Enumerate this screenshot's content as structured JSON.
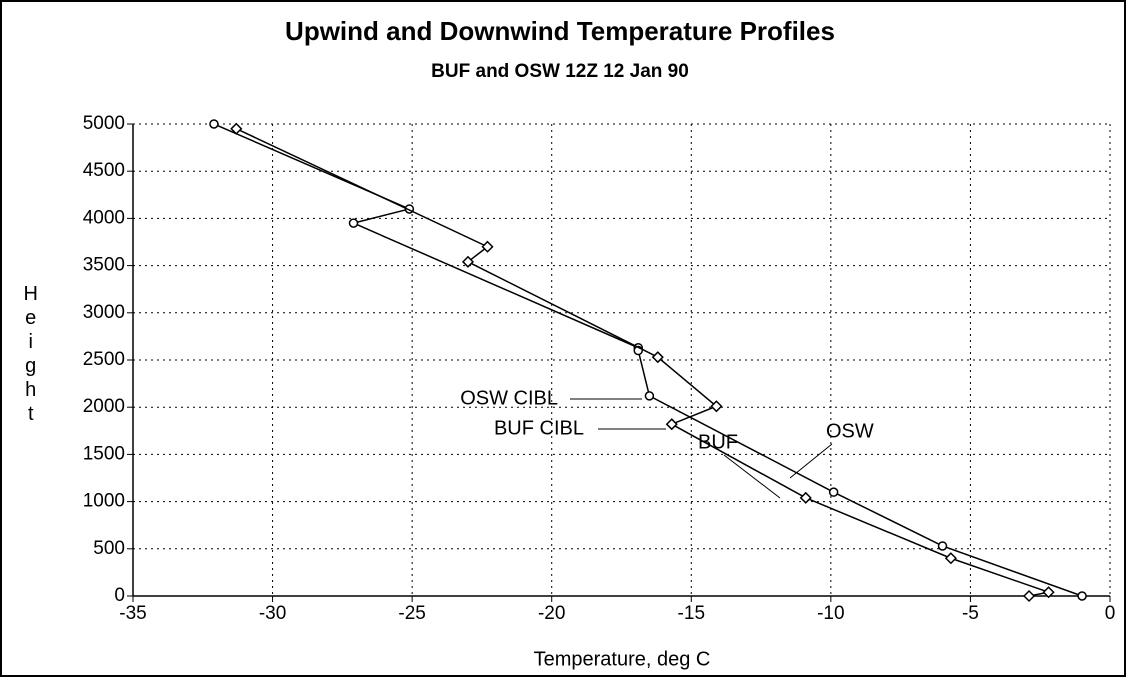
{
  "chart_data": {
    "type": "line",
    "title": "Upwind and Downwind Temperature Profiles",
    "subtitle": "BUF and OSW 12Z  12 Jan 90",
    "xlabel": "Temperature, deg C",
    "ylabel": "Height",
    "xlim": [
      -35,
      0
    ],
    "ylim": [
      0,
      5000
    ],
    "xticks": [
      -35,
      -30,
      -25,
      -20,
      -15,
      -10,
      -5,
      0
    ],
    "yticks": [
      0,
      500,
      1000,
      1500,
      2000,
      2500,
      3000,
      3500,
      4000,
      4500,
      5000
    ],
    "grid": true,
    "series": [
      {
        "name": "OSW",
        "color": "#000000",
        "marker": "circle",
        "x": [
          -32.1,
          -25.1,
          -27.1,
          -16.9,
          -16.9,
          -16.5,
          -9.9,
          -6.0,
          -1.0
        ],
        "values": [
          5000,
          4100,
          3950,
          2630,
          2600,
          2120,
          1100,
          530,
          0
        ]
      },
      {
        "name": "BUF",
        "color": "#000000",
        "marker": "diamond",
        "x": [
          -31.3,
          -22.3,
          -23.0,
          -16.2,
          -14.1,
          -15.7,
          -10.9,
          -5.7,
          -2.2,
          -2.9
        ],
        "values": [
          4950,
          3700,
          3540,
          2530,
          2010,
          1820,
          1040,
          400,
          40,
          0
        ]
      }
    ],
    "annotations": [
      "OSW CIBL",
      "BUF CIBL"
    ]
  }
}
